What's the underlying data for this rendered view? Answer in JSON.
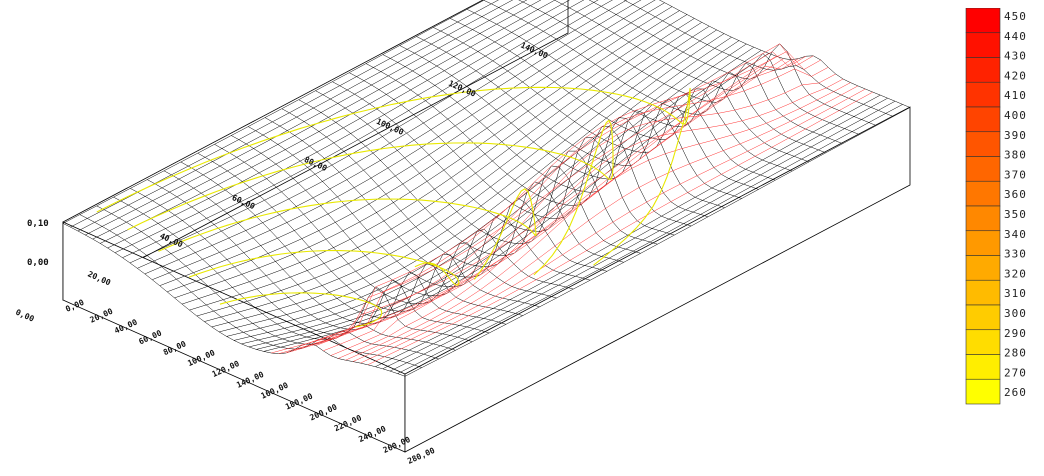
{
  "chart_data": {
    "type": "surface",
    "z_axis": {
      "tick_labels": [
        "0,00",
        "0,10"
      ]
    },
    "x_axis": {
      "tick_labels": [
        "0,00",
        "20,00",
        "40,00",
        "60,00",
        "80,00",
        "100,00",
        "120,00",
        "140,00",
        "160,00",
        "180,00",
        "200,00",
        "220,00",
        "240,00",
        "260,00",
        "280,00"
      ]
    },
    "y_axis": {
      "tick_labels": [
        "0,00",
        "20,00",
        "40,00",
        "60,00",
        "80,00",
        "100,00",
        "120,00",
        "140,00"
      ]
    },
    "color_scale": {
      "colors": [
        "#ffff00",
        "#ffee00",
        "#ffdd00",
        "#ffcc00",
        "#ffbb00",
        "#ffaa00",
        "#ff9900",
        "#ff8800",
        "#ff7700",
        "#ff6600",
        "#ff5500",
        "#ff4400",
        "#ff3300",
        "#ff2200",
        "#ff1100",
        "#ff0000"
      ],
      "labels": [
        "260",
        "270",
        "280",
        "290",
        "300",
        "310",
        "320",
        "330",
        "340",
        "350",
        "360",
        "370",
        "380",
        "390",
        "400",
        "410",
        "420",
        "430",
        "440",
        "450"
      ]
    },
    "surface_colors": {
      "mesh": "#000000",
      "contour": "#e8e800",
      "ridge": "#ff0000",
      "ridge_mesh": "#ff3333"
    }
  }
}
